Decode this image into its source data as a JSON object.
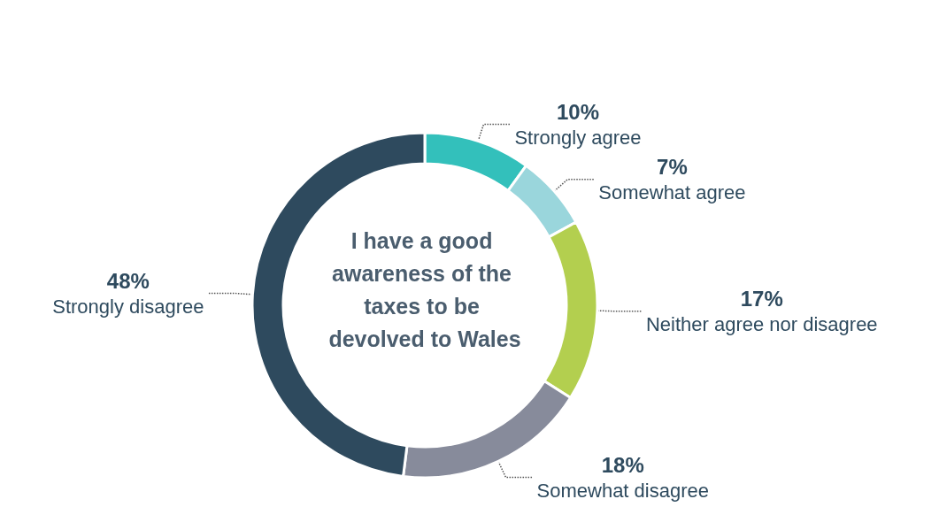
{
  "chart_data": {
    "type": "donut",
    "title": "I have a good awareness of the taxes to be devolved to Wales",
    "categories": [
      "Strongly agree",
      "Somewhat agree",
      "Neither agree nor disagree",
      "Somewhat disagree",
      "Strongly disagree"
    ],
    "values": [
      10,
      7,
      17,
      18,
      48
    ],
    "colors": [
      "#33c0bb",
      "#9ad6dc",
      "#b3cf4f",
      "#878b9b",
      "#2e4a5e"
    ],
    "value_labels": [
      "10%",
      "7%",
      "17%",
      "18%",
      "48%"
    ]
  }
}
